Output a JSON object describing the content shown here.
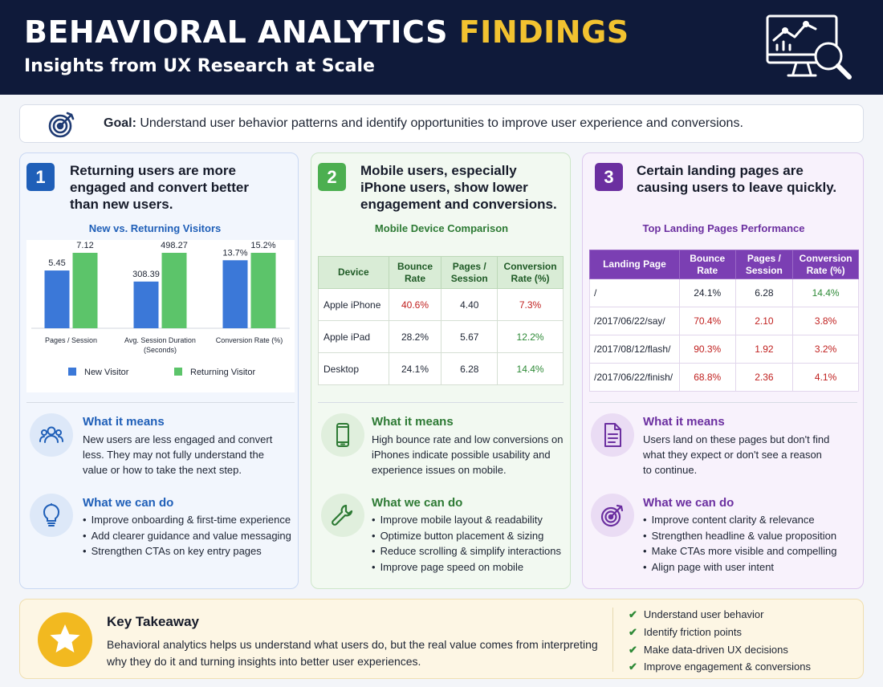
{
  "header": {
    "title_main": "BEHAVIORAL ANALYTICS",
    "title_highlight": "FINDINGS",
    "subtitle": "Insights from UX Research at Scale",
    "icon": "analytics-monitor-icon"
  },
  "goal": {
    "label": "Goal:",
    "text": "Understand user behavior patterns and identify opportunities to improve user experience and conversions.",
    "icon": "target-icon"
  },
  "cards": [
    {
      "number": "1",
      "title_lines": [
        "Returning users are more",
        "engaged and convert better",
        "than new users."
      ],
      "chart_title": "New vs. Returning Visitors",
      "what_it_means": {
        "heading": "What it means",
        "lines": [
          "New users are less engaged and convert",
          "less. They may not fully understand the",
          "value or how to take the next step."
        ],
        "icon": "users-icon"
      },
      "what_we_can_do": {
        "heading": "What we can do",
        "items": [
          "Improve onboarding & first-time experience",
          "Add clearer guidance and value messaging",
          "Strengthen CTAs on key entry pages"
        ],
        "icon": "lightbulb-icon"
      }
    },
    {
      "number": "2",
      "title_lines": [
        "Mobile users, especially",
        "iPhone users, show lower",
        "engagement and conversions."
      ],
      "table_title": "Mobile Device Comparison",
      "table": {
        "headers": [
          [
            "Device"
          ],
          [
            "Bounce",
            "Rate"
          ],
          [
            "Pages /",
            "Session"
          ],
          [
            "Conversion",
            "Rate (%)"
          ]
        ],
        "rows": [
          [
            "Apple iPhone",
            "40.6%",
            "4.40",
            "7.3%"
          ],
          [
            "Apple iPad",
            "28.2%",
            "5.67",
            "12.2%"
          ],
          [
            "Desktop",
            "24.1%",
            "6.28",
            "14.4%"
          ]
        ],
        "bounce_colors": [
          "red",
          "",
          ""
        ],
        "conv_colors": [
          "red",
          "green",
          "green"
        ]
      },
      "what_it_means": {
        "heading": "What it means",
        "lines": [
          "High bounce rate and low conversions on",
          "iPhones indicate possible usability and",
          "experience issues on mobile."
        ],
        "icon": "smartphone-icon"
      },
      "what_we_can_do": {
        "heading": "What we can do",
        "items": [
          "Improve mobile layout & readability",
          "Optimize button placement & sizing",
          "Reduce scrolling & simplify interactions",
          "Improve page speed on mobile"
        ],
        "icon": "wrench-icon"
      }
    },
    {
      "number": "3",
      "title_lines": [
        "Certain landing pages are",
        "causing users to leave quickly."
      ],
      "table_title": "Top Landing Pages Performance",
      "table": {
        "headers": [
          [
            "Landing Page"
          ],
          [
            "Bounce",
            "Rate"
          ],
          [
            "Pages /",
            "Session"
          ],
          [
            "Conversion",
            "Rate (%)"
          ]
        ],
        "rows": [
          [
            "/",
            "24.1%",
            "6.28",
            "14.4%"
          ],
          [
            "/2017/06/22/say/",
            "70.4%",
            "2.10",
            "3.8%"
          ],
          [
            "/2017/08/12/flash/",
            "90.3%",
            "1.92",
            "3.2%"
          ],
          [
            "/2017/06/22/finish/",
            "68.8%",
            "2.36",
            "4.1%"
          ]
        ],
        "bounce_colors": [
          "",
          "red",
          "red",
          "red"
        ],
        "pages_colors": [
          "",
          "red",
          "red",
          "red"
        ],
        "conv_colors": [
          "green",
          "red",
          "red",
          "red"
        ]
      },
      "what_it_means": {
        "heading": "What it means",
        "lines": [
          "Users land on these pages but don't find",
          "what they expect or don't see a reason",
          "to continue."
        ],
        "icon": "document-icon"
      },
      "what_we_can_do": {
        "heading": "What we can do",
        "items": [
          "Improve content clarity & relevance",
          "Strengthen headline & value proposition",
          "Make CTAs more visible and compelling",
          "Align page with user intent"
        ],
        "icon": "target-icon"
      }
    }
  ],
  "chart_data": {
    "type": "bar",
    "title": "New vs. Returning Visitors",
    "categories": [
      [
        "Pages / Session"
      ],
      [
        "Avg. Session Duration",
        "(Seconds)"
      ],
      [
        "Conversion Rate (%)"
      ]
    ],
    "series": [
      {
        "name": "New Visitor",
        "values": [
          5.45,
          308.39,
          13.7
        ],
        "labels": [
          "5.45",
          "308.39",
          "13.7%"
        ],
        "color": "#3b78d8"
      },
      {
        "name": "Returning Visitor",
        "values": [
          7.12,
          498.27,
          15.2
        ],
        "labels": [
          "7.12",
          "498.27",
          "15.2%"
        ],
        "color": "#5cc46a"
      }
    ],
    "note": "each category group is scaled independently",
    "legend": "bottom"
  },
  "takeaway": {
    "title": "Key Takeaway",
    "lines": [
      "Behavioral analytics helps us understand what users do, but the real value comes from interpreting",
      "why they do it and turning insights into better user experiences."
    ],
    "checks": [
      "Understand user behavior",
      "Identify friction points",
      "Make data-driven UX decisions",
      "Improve engagement & conversions"
    ],
    "icon": "star-icon"
  },
  "colors": {
    "header_bg": "#0f1a3a",
    "highlight": "#f2c230",
    "blue": "#1f5fb8",
    "green": "#2d7a34",
    "purple": "#6b2fa0",
    "bad": "#c0201f",
    "good": "#2e8a37"
  }
}
